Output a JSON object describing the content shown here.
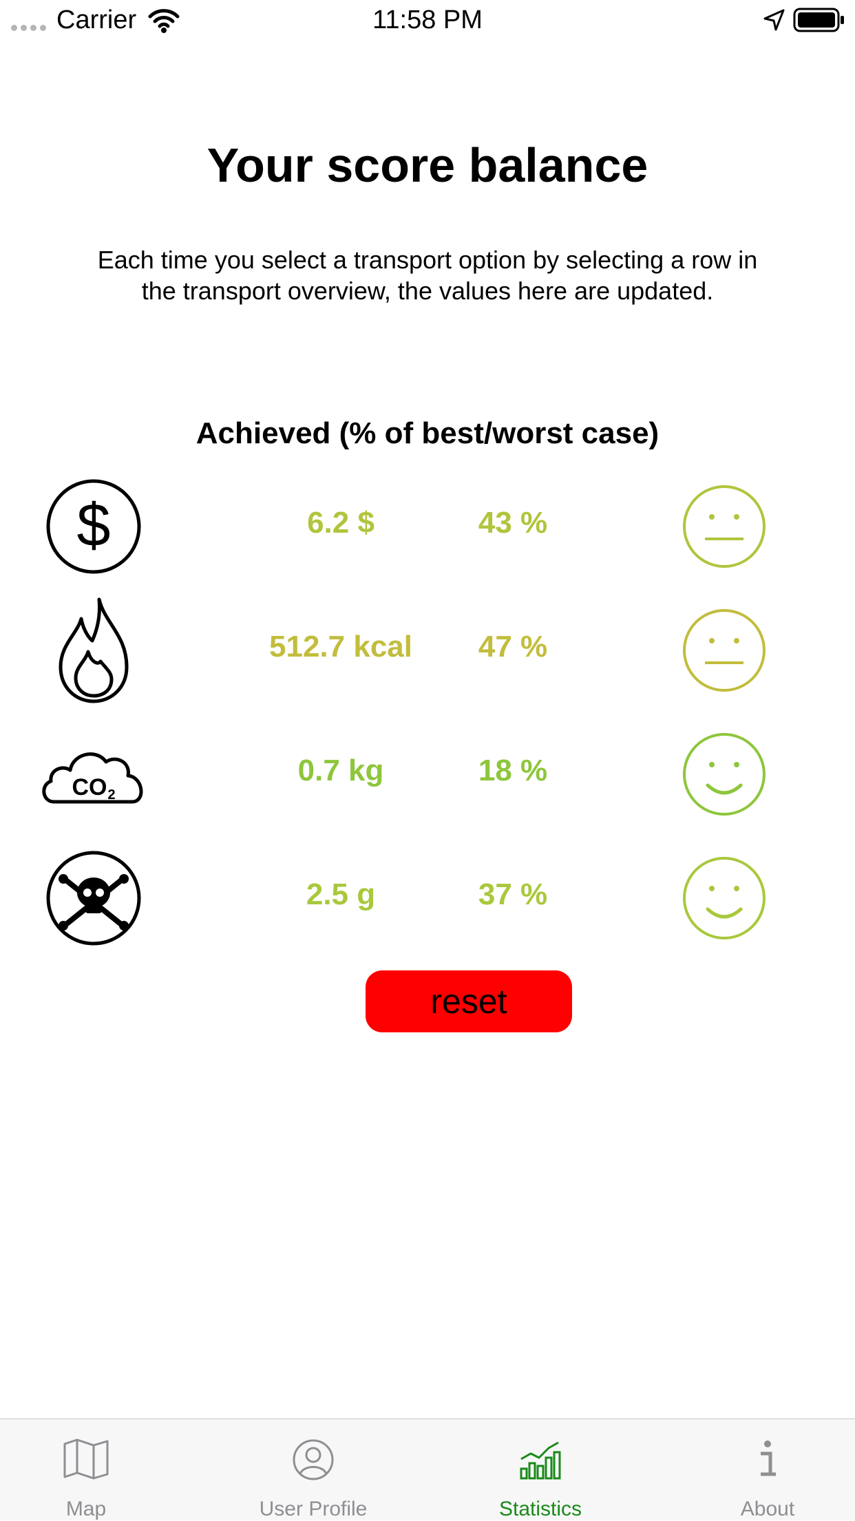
{
  "status_bar": {
    "carrier": "Carrier",
    "time": "11:58 PM"
  },
  "title": "Your score balance",
  "description": "Each time you select a transport option by selecting a row in the transport overview, the values here are updated.",
  "section_title": "Achieved (% of best/worst case)",
  "rows": [
    {
      "icon": "dollar-icon",
      "value": "6.2 $",
      "percent": "43 %",
      "color": "#b2c43c",
      "face": "neutral"
    },
    {
      "icon": "flame-icon",
      "value": "512.7 kcal",
      "percent": "47 %",
      "color": "#c2bd3c",
      "face": "neutral"
    },
    {
      "icon": "co2-cloud-icon",
      "value": "0.7 kg",
      "percent": "18 %",
      "color": "#8ec63c",
      "face": "happy"
    },
    {
      "icon": "skull-crossbones-icon",
      "value": "2.5 g",
      "percent": "37 %",
      "color": "#a9c83c",
      "face": "happy"
    }
  ],
  "reset_label": "reset",
  "tabs": [
    {
      "label": "Map",
      "icon": "map-icon",
      "active": false
    },
    {
      "label": "User Profile",
      "icon": "user-profile-icon",
      "active": false
    },
    {
      "label": "Statistics",
      "icon": "statistics-icon",
      "active": true
    },
    {
      "label": "About",
      "icon": "info-icon",
      "active": false
    }
  ],
  "colors": {
    "reset_bg": "#ff0000",
    "tab_active": "#1a8a1a",
    "tab_inactive": "#8e8e93"
  }
}
